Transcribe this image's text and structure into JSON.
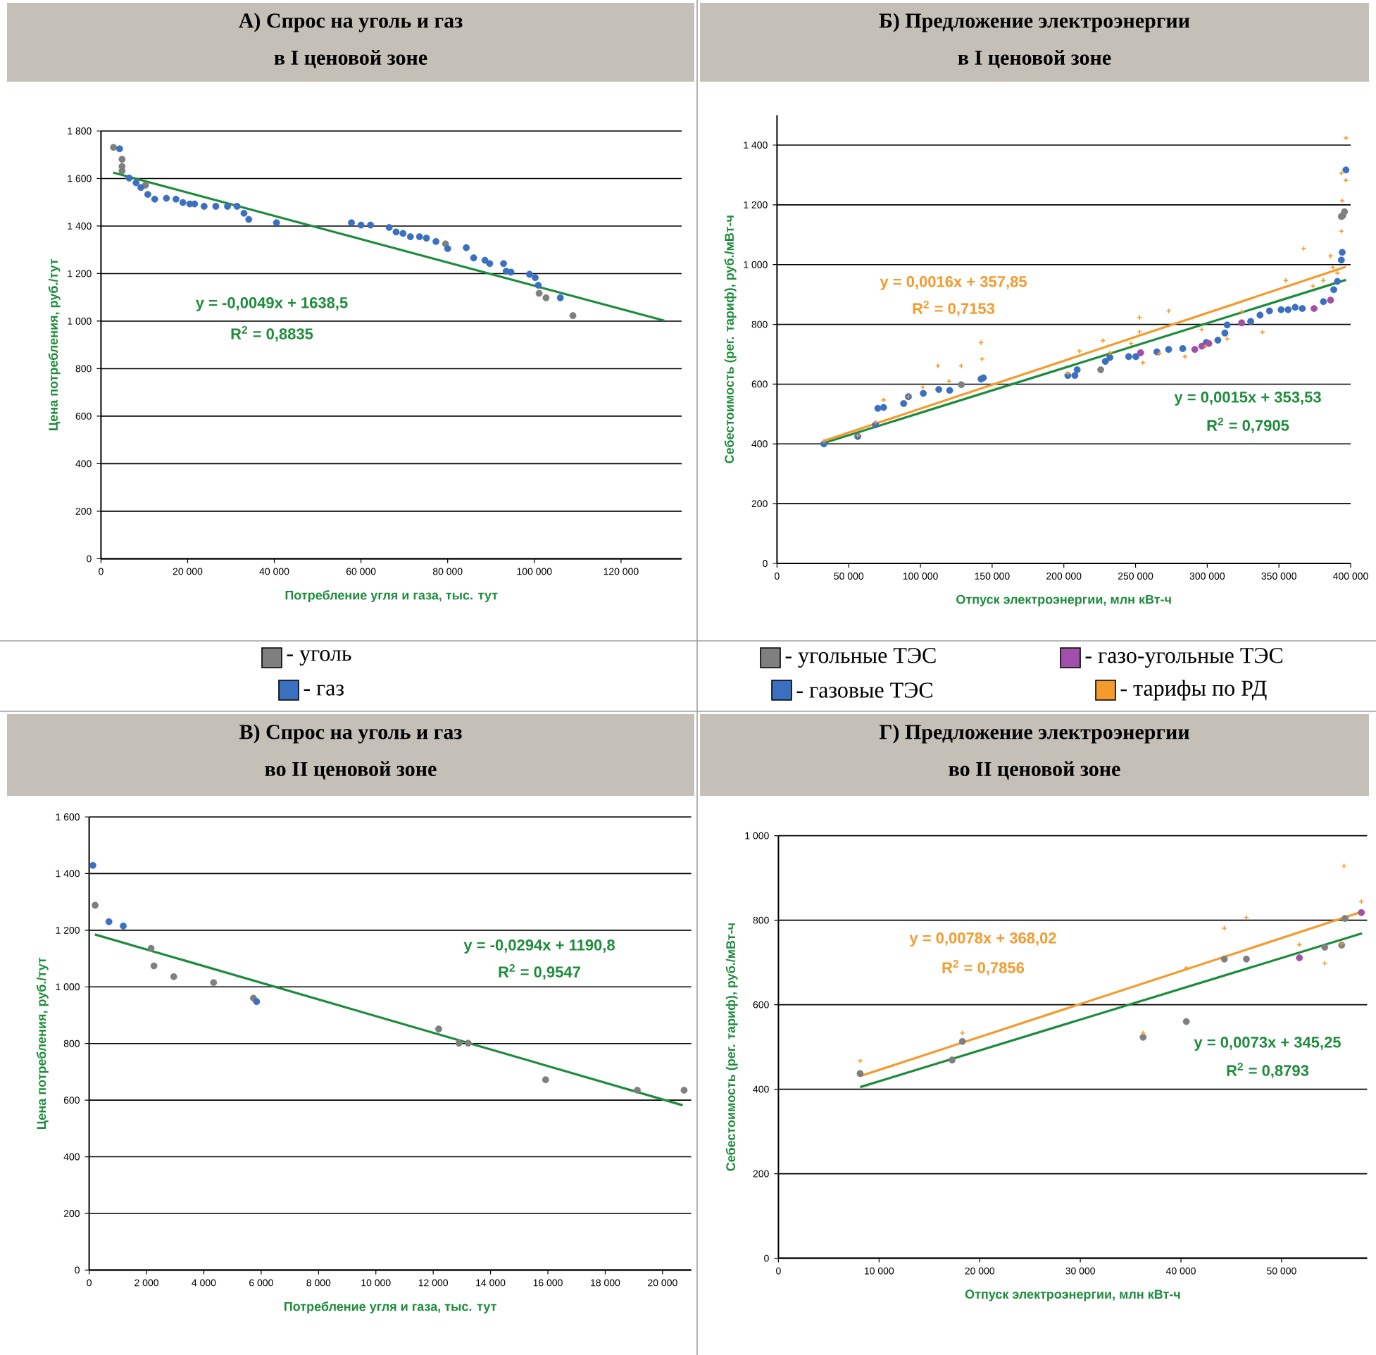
{
  "chart_data": [
    {
      "type": "scatter",
      "title": "А) Спрос на уголь и газ",
      "subtitle": "в I ценовой зоне",
      "xlabel": "Потребление угля и газа, тыс. тут",
      "ylabel": "Цена потребления, руб./тут",
      "xlim": [
        0,
        134000
      ],
      "ylim": [
        0,
        1800
      ],
      "xticks": [
        0,
        {
          "value": 20000,
          "label": "20 000"
        },
        {
          "value": 40000,
          "label": "40 000"
        },
        {
          "value": 60000,
          "label": "60 000"
        },
        {
          "value": 80000,
          "label": "80 000"
        },
        {
          "value": 100000,
          "label": "100 000"
        },
        {
          "value": 120000,
          "label": "120 000"
        }
      ],
      "yticks": [
        0,
        200,
        400,
        600,
        800,
        {
          "value": 1000,
          "label": "1 000"
        },
        {
          "value": 1200,
          "label": "1 200"
        },
        {
          "value": 1400,
          "label": "1 400"
        },
        {
          "value": 1600,
          "label": "1 600"
        },
        {
          "value": 1800,
          "label": "1 800"
        }
      ],
      "grid": "y",
      "legend": "bottom",
      "series": [
        {
          "name": "- уголь",
          "marker": "circle",
          "color": "#7f7f7f",
          "x": [
            2900,
            4860,
            4860,
            4860,
            10270,
            79500,
            101100,
            102700,
            108900
          ],
          "values": [
            1731,
            1681,
            1651,
            1632,
            1572,
            1325,
            1117,
            1098,
            1023
          ]
        },
        {
          "name": "- газ",
          "marker": "circle",
          "color": "#3b6fbf",
          "x": [
            4300,
            6500,
            8100,
            9200,
            10800,
            12400,
            15100,
            17300,
            18900,
            20500,
            21600,
            23800,
            26500,
            29200,
            31400,
            33000,
            34100,
            40500,
            57800,
            60000,
            62200,
            66500,
            68100,
            69700,
            71400,
            73500,
            75100,
            77300,
            80000,
            84300,
            86000,
            88600,
            89700,
            92900,
            93500,
            94600,
            98900,
            100200,
            100900,
            106000
          ],
          "values": [
            1725,
            1602,
            1582,
            1562,
            1533,
            1513,
            1517,
            1513,
            1499,
            1493,
            1493,
            1483,
            1483,
            1483,
            1483,
            1454,
            1428,
            1414,
            1414,
            1404,
            1404,
            1394,
            1375,
            1369,
            1355,
            1355,
            1349,
            1335,
            1305,
            1309,
            1266,
            1256,
            1242,
            1242,
            1210,
            1206,
            1197,
            1183,
            1151,
            1098
          ]
        },
        {
          "type": "line",
          "marker": "none",
          "line_style": "solid",
          "color": "#1e8c3c",
          "x": [
            2800,
            130000
          ],
          "values": [
            1625,
            1002
          ]
        }
      ],
      "annotations": [
        "y = -0,0049x + 1638,5",
        "R$^{2}$ = 0,8835"
      ]
    },
    {
      "type": "scatter",
      "title": "Б) Предложение электроэнергии",
      "subtitle": "в I ценовой зоне",
      "xlabel": "Отпуск электроэнергии, млн кВт-ч",
      "ylabel": "Себестоимость (рег. тариф), руб./мВт-ч",
      "xlim": [
        0,
        400000
      ],
      "ylim": [
        0,
        1500
      ],
      "xticks": [
        0,
        {
          "value": 50000,
          "label": "50 000"
        },
        {
          "value": 100000,
          "label": "100 000"
        },
        {
          "value": 150000,
          "label": "150 000"
        },
        {
          "value": 200000,
          "label": "200 000"
        },
        {
          "value": 250000,
          "label": "250 000"
        },
        {
          "value": 300000,
          "label": "300 000"
        },
        {
          "value": 350000,
          "label": "350 000"
        },
        {
          "value": 400000,
          "label": "400 000"
        }
      ],
      "yticks": [
        0,
        200,
        400,
        600,
        800,
        {
          "value": 1000,
          "label": "1 000"
        },
        {
          "value": 1200,
          "label": "1 200"
        },
        {
          "value": 1400,
          "label": "1 400"
        }
      ],
      "grid": "y",
      "legend": "bottom",
      "series": [
        {
          "name": "- угольные ТЭС",
          "marker": "circle",
          "color": "#7f7f7f",
          "x": [
            128500,
            225700,
            393500,
            395700,
            394500
          ],
          "values": [
            598,
            648,
            1161,
            1177,
            1164
          ]
        },
        {
          "name": "- газовые ТЭС",
          "marker": "circle",
          "color": "#3b6fbf",
          "x": [
            32700,
            56300,
            68700,
            70300,
            74300,
            88300,
            91600,
            102000,
            112800,
            120400,
            142300,
            143900,
            202800,
            207700,
            209300,
            228900,
            232100,
            245200,
            250200,
            264900,
            273100,
            282900,
            299300,
            307400,
            312300,
            313900,
            330300,
            336800,
            343400,
            351500,
            356400,
            361300,
            366300,
            381000,
            388200,
            390800,
            393500,
            394100,
            396700
          ],
          "values": [
            400,
            425,
            464,
            519,
            522,
            535,
            558,
            569,
            582,
            579,
            617,
            621,
            629,
            629,
            648,
            676,
            689,
            692,
            692,
            708,
            716,
            719,
            739,
            747,
            771,
            798,
            810,
            831,
            845,
            849,
            849,
            857,
            853,
            876,
            916,
            944,
            1015,
            1041,
            1317
          ]
        },
        {
          "name": "- газо-угольные ТЭС",
          "marker": "circle",
          "color": "#a050a8",
          "x": [
            253500,
            291300,
            296200,
            301100,
            324000,
            374500,
            386000
          ],
          "values": [
            705,
            716,
            727,
            736,
            805,
            853,
            881
          ]
        },
        {
          "name": "- тарифы по РД",
          "marker": "cross",
          "color": "#f59a2c",
          "x": [
            32700,
            56300,
            68700,
            74300,
            91600,
            101700,
            112200,
            120000,
            128500,
            142300,
            143000,
            202800,
            211000,
            227300,
            232100,
            246900,
            252800,
            255100,
            252800,
            266600,
            273100,
            284500,
            296200,
            298800,
            313900,
            324000,
            338400,
            354800,
            367300,
            373800,
            381000,
            386000,
            387600,
            393500,
            394100,
            393500,
            396700,
            396700,
            390800
          ],
          "values": [
            409,
            428,
            472,
            547,
            558,
            590,
            661,
            610,
            661,
            739,
            684,
            636,
            711,
            746,
            705,
            736,
            823,
            672,
            775,
            702,
            845,
            692,
            783,
            727,
            752,
            842,
            774,
            947,
            1054,
            928,
            947,
            1029,
            991,
            1306,
            1214,
            1112,
            1424,
            1282,
            972
          ]
        },
        {
          "type": "line",
          "marker": "none",
          "line_style": "solid",
          "color": "#1e8c3c",
          "x": [
            32700,
            396700
          ],
          "values": [
            403,
            949
          ]
        },
        {
          "type": "line",
          "marker": "none",
          "line_style": "solid",
          "color": "#f59a2c",
          "x": [
            32700,
            396700
          ],
          "values": [
            410,
            993
          ]
        }
      ],
      "annotations": [
        "y = 0,0016x + 357,85",
        "R$^{2}$ = 0,7153",
        "y = 0,0015x + 353,53",
        "R$^{2}$ = 0,7905"
      ]
    },
    {
      "type": "scatter",
      "title": "В) Спрос на уголь и газ",
      "subtitle": "во II ценовой зоне",
      "xlabel": "Потребление угля и газа, тыс. тут",
      "ylabel": "Цена потребления, руб./тут",
      "xlim": [
        0,
        21000
      ],
      "ylim": [
        0,
        1600
      ],
      "xticks": [
        0,
        {
          "value": 2000,
          "label": "2 000"
        },
        {
          "value": 4000,
          "label": "4 000"
        },
        {
          "value": 6000,
          "label": "6 000"
        },
        {
          "value": 8000,
          "label": "8 000"
        },
        {
          "value": 10000,
          "label": "10 000"
        },
        {
          "value": 12000,
          "label": "12 000"
        },
        {
          "value": 14000,
          "label": "14 000"
        },
        {
          "value": 16000,
          "label": "16 000"
        },
        {
          "value": 18000,
          "label": "18 000"
        },
        {
          "value": 20000,
          "label": "20 000"
        }
      ],
      "yticks": [
        0,
        200,
        400,
        600,
        800,
        {
          "value": 1000,
          "label": "1 000"
        },
        {
          "value": 1200,
          "label": "1 200"
        },
        {
          "value": 1400,
          "label": "1 400"
        },
        {
          "value": 1600,
          "label": "1 600"
        }
      ],
      "grid": "y",
      "series": [
        {
          "marker": "circle",
          "color": "#7f7f7f",
          "x": [
            210,
            2160,
            2260,
            2950,
            4340,
            5730,
            12190,
            12900,
            13220,
            15920,
            19120,
            20750
          ],
          "values": [
            1288,
            1136,
            1074,
            1036,
            1015,
            960,
            851,
            801,
            801,
            672,
            635,
            635
          ]
        },
        {
          "marker": "circle",
          "color": "#3b6fbf",
          "x": [
            130,
            690,
            1190,
            5840
          ],
          "values": [
            1429,
            1230,
            1215,
            948
          ]
        },
        {
          "type": "line",
          "marker": "none",
          "line_style": "solid",
          "color": "#1e8c3c",
          "x": [
            200,
            20700
          ],
          "values": [
            1185,
            582
          ]
        }
      ],
      "annotations": [
        "y = -0,0294x + 1190,8",
        "R$^{2}$ = 0,9547"
      ]
    },
    {
      "type": "scatter",
      "title": "Г) Предложение электроэнергии",
      "subtitle": "во II ценовой зоне",
      "xlabel": "Отпуск электроэнергии, млн кВт-ч",
      "ylabel": "Себестоимость (рег. тариф), руб./мВт-ч",
      "xlim": [
        0,
        58500
      ],
      "ylim": [
        0,
        1000
      ],
      "xticks": [
        0,
        {
          "value": 10000,
          "label": "10 000"
        },
        {
          "value": 20000,
          "label": "20 000"
        },
        {
          "value": 30000,
          "label": "30 000"
        },
        {
          "value": 40000,
          "label": "40 000"
        },
        {
          "value": 50000,
          "label": "50 000"
        }
      ],
      "yticks": [
        0,
        200,
        400,
        600,
        800,
        {
          "value": 1000,
          "label": "1 000"
        }
      ],
      "grid": "y",
      "series": [
        {
          "marker": "circle",
          "color": "#7f7f7f",
          "x": [
            8120,
            17260,
            18280,
            36240,
            40530,
            44310,
            46500,
            54290,
            55970,
            56300
          ],
          "values": [
            437,
            469,
            513,
            523,
            560,
            708,
            708,
            736,
            741,
            804
          ]
        },
        {
          "marker": "circle",
          "color": "#a050a8",
          "x": [
            51770,
            57930
          ],
          "values": [
            711,
            818
          ]
        },
        {
          "marker": "cross",
          "color": "#f59a2c",
          "x": [
            8120,
            18280,
            36240,
            40530,
            44310,
            46500,
            51770,
            54290,
            55970,
            56200,
            57930
          ],
          "values": [
            467,
            533,
            533,
            687,
            781,
            806,
            742,
            698,
            744,
            928,
            844
          ]
        },
        {
          "type": "line",
          "marker": "none",
          "line_style": "solid",
          "color": "#1e8c3c",
          "x": [
            8120,
            58000
          ],
          "values": [
            405,
            769
          ]
        },
        {
          "type": "line",
          "marker": "none",
          "line_style": "solid",
          "color": "#f59a2c",
          "x": [
            8120,
            58000
          ],
          "values": [
            431,
            820
          ]
        }
      ],
      "annotations": [
        "y = 0,0078x + 368,02",
        "R$^{2}$ = 0,7856",
        "y = 0,0073x + 345,25",
        "R$^{2}$ = 0,8793"
      ]
    }
  ]
}
